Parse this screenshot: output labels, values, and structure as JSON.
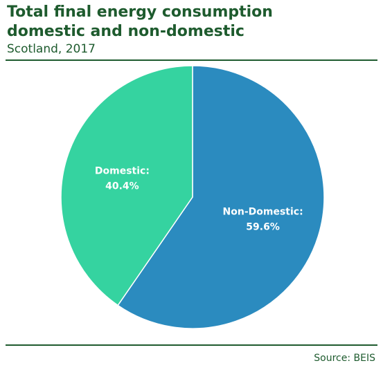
{
  "chart_data": {
    "type": "pie",
    "title_lines": [
      "Total final energy consumption",
      "domestic and non-domestic"
    ],
    "subtitle": "Scotland, 2017",
    "source": "Source: BEIS",
    "slices": [
      {
        "name": "Non-Domestic:",
        "value": 59.6,
        "label": "59.6%",
        "color": "#2b8bbf"
      },
      {
        "name": "Domestic:",
        "value": 40.4,
        "label": "40.4%",
        "color": "#35d3a0"
      }
    ],
    "start": "12 o'clock",
    "direction": "clockwise",
    "legend": "none"
  },
  "colors": {
    "heading": "#1e5b2e",
    "slice_border": "#ffffff"
  }
}
